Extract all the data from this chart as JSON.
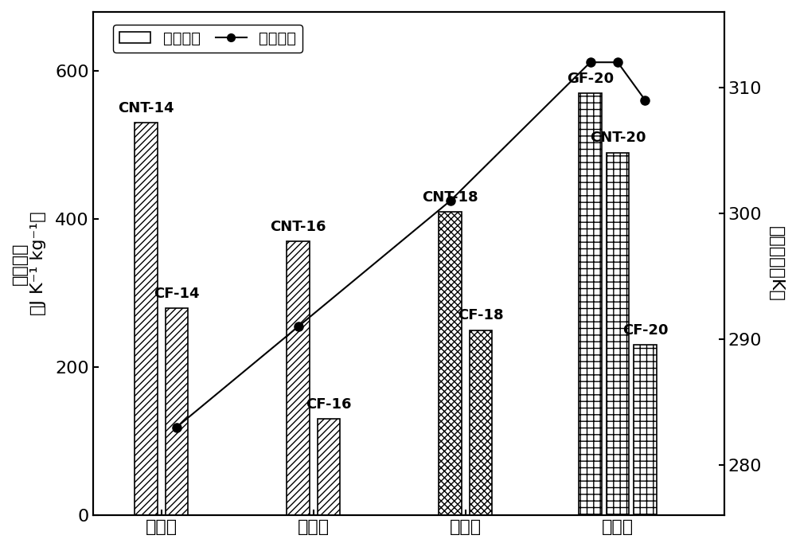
{
  "groups": [
    "十四烷",
    "十六烷",
    "十八烷",
    "二十烷"
  ],
  "bar_data": [
    {
      "label": "CNT-14",
      "group": 0,
      "value": 530,
      "hatch": "////"
    },
    {
      "label": "CF-14",
      "group": 0,
      "value": 280,
      "hatch": "////"
    },
    {
      "label": "CNT-16",
      "group": 1,
      "value": 370,
      "hatch": "////"
    },
    {
      "label": "CF-16",
      "group": 1,
      "value": 130,
      "hatch": "////"
    },
    {
      "label": "CNT-18",
      "group": 2,
      "value": 410,
      "hatch": "xxxx"
    },
    {
      "label": "CF-18",
      "group": 2,
      "value": 250,
      "hatch": "xxxx"
    },
    {
      "label": "GF-20",
      "group": 3,
      "value": 570,
      "hatch": "++"
    },
    {
      "label": "CNT-20",
      "group": 3,
      "value": 490,
      "hatch": "++"
    },
    {
      "label": "CF-20",
      "group": 3,
      "value": 230,
      "hatch": "++"
    }
  ],
  "group_offsets_2": [
    -0.1,
    0.1
  ],
  "group_offsets_3": [
    -0.18,
    0.0,
    0.18
  ],
  "bar_width": 0.15,
  "group_centers": [
    1,
    2,
    3,
    4
  ],
  "line_x_raw": [
    1.1,
    1.9,
    2.9,
    3.82,
    4.0,
    4.18
  ],
  "line_y": [
    283,
    291,
    301,
    312,
    312,
    309
  ],
  "ylim_left": [
    0,
    680
  ],
  "ylim_right": [
    276,
    316
  ],
  "yticks_left": [
    0,
    200,
    400,
    600
  ],
  "yticks_right": [
    280,
    290,
    300,
    310
  ],
  "ylabel_left_top": "等温熵变",
  "ylabel_left_bot": "（J K⁻¹ kg⁻¹）",
  "ylabel_right": "相变温度（K）",
  "legend_bar": "等温熵变",
  "legend_line": "相变温度",
  "xlim": [
    0.55,
    4.7
  ],
  "fontsize_tick": 16,
  "fontsize_label": 16,
  "fontsize_annot": 13
}
